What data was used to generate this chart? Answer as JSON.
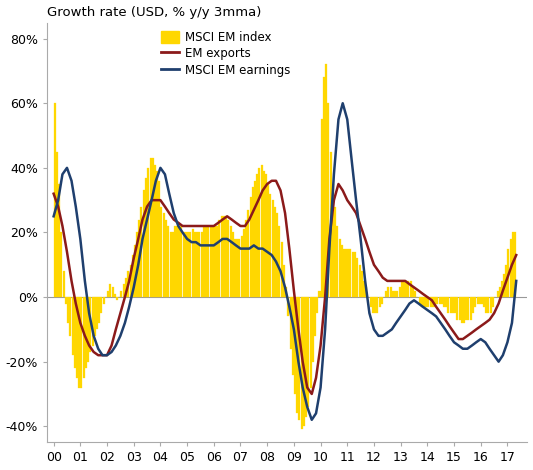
{
  "title": "Growth rate (USD, % y/y 3mma)",
  "ylim": [
    -45,
    85
  ],
  "yticks": [
    -40,
    -20,
    0,
    20,
    40,
    60,
    80
  ],
  "ytick_labels": [
    "-40%",
    "-20%",
    "0%",
    "20%",
    "40%",
    "60%",
    "80%"
  ],
  "bar_color": "#FFD700",
  "bar_edge_color": "#FFD700",
  "exports_color": "#8B1A1A",
  "earnings_color": "#1F3F6E",
  "legend_labels": [
    "MSCI EM index",
    "EM exports",
    "MSCI EM earnings"
  ],
  "xlabel_ticks": [
    "00",
    "01",
    "02",
    "03",
    "04",
    "05",
    "06",
    "07",
    "08",
    "09",
    "10",
    "11",
    "12",
    "13",
    "14",
    "15",
    "16",
    "17"
  ],
  "background_color": "#ffffff",
  "bar_data_x": [
    2000.04,
    2000.12,
    2000.21,
    2000.29,
    2000.38,
    2000.46,
    2000.54,
    2000.63,
    2000.71,
    2000.79,
    2000.88,
    2000.96,
    2001.04,
    2001.12,
    2001.21,
    2001.29,
    2001.38,
    2001.46,
    2001.54,
    2001.63,
    2001.71,
    2001.79,
    2001.88,
    2001.96,
    2002.04,
    2002.12,
    2002.21,
    2002.29,
    2002.38,
    2002.46,
    2002.54,
    2002.63,
    2002.71,
    2002.79,
    2002.88,
    2002.96,
    2003.04,
    2003.12,
    2003.21,
    2003.29,
    2003.38,
    2003.46,
    2003.54,
    2003.63,
    2003.71,
    2003.79,
    2003.88,
    2003.96,
    2004.04,
    2004.12,
    2004.21,
    2004.29,
    2004.38,
    2004.46,
    2004.54,
    2004.63,
    2004.71,
    2004.79,
    2004.88,
    2004.96,
    2005.04,
    2005.12,
    2005.21,
    2005.29,
    2005.38,
    2005.46,
    2005.54,
    2005.63,
    2005.71,
    2005.79,
    2005.88,
    2005.96,
    2006.04,
    2006.12,
    2006.21,
    2006.29,
    2006.38,
    2006.46,
    2006.54,
    2006.63,
    2006.71,
    2006.79,
    2006.88,
    2006.96,
    2007.04,
    2007.12,
    2007.21,
    2007.29,
    2007.38,
    2007.46,
    2007.54,
    2007.63,
    2007.71,
    2007.79,
    2007.88,
    2007.96,
    2008.04,
    2008.12,
    2008.21,
    2008.29,
    2008.38,
    2008.46,
    2008.54,
    2008.63,
    2008.71,
    2008.79,
    2008.88,
    2008.96,
    2009.04,
    2009.12,
    2009.21,
    2009.29,
    2009.38,
    2009.46,
    2009.54,
    2009.63,
    2009.71,
    2009.79,
    2009.88,
    2009.96,
    2010.04,
    2010.12,
    2010.21,
    2010.29,
    2010.38,
    2010.46,
    2010.54,
    2010.63,
    2010.71,
    2010.79,
    2010.88,
    2010.96,
    2011.04,
    2011.12,
    2011.21,
    2011.29,
    2011.38,
    2011.46,
    2011.54,
    2011.63,
    2011.71,
    2011.79,
    2011.88,
    2011.96,
    2012.04,
    2012.12,
    2012.21,
    2012.29,
    2012.38,
    2012.46,
    2012.54,
    2012.63,
    2012.71,
    2012.79,
    2012.88,
    2012.96,
    2013.04,
    2013.12,
    2013.21,
    2013.29,
    2013.38,
    2013.46,
    2013.54,
    2013.63,
    2013.71,
    2013.79,
    2013.88,
    2013.96,
    2014.04,
    2014.12,
    2014.21,
    2014.29,
    2014.38,
    2014.46,
    2014.54,
    2014.63,
    2014.71,
    2014.79,
    2014.88,
    2014.96,
    2015.04,
    2015.12,
    2015.21,
    2015.29,
    2015.38,
    2015.46,
    2015.54,
    2015.63,
    2015.71,
    2015.79,
    2015.88,
    2015.96,
    2016.04,
    2016.12,
    2016.21,
    2016.29,
    2016.38,
    2016.46,
    2016.54,
    2016.63,
    2016.71,
    2016.79,
    2016.88,
    2016.96,
    2017.04,
    2017.12,
    2017.21,
    2017.29
  ],
  "bar_data_y": [
    60,
    45,
    35,
    20,
    8,
    -2,
    -8,
    -12,
    -18,
    -22,
    -25,
    -28,
    -28,
    -25,
    -22,
    -20,
    -17,
    -15,
    -12,
    -10,
    -8,
    -5,
    -2,
    0,
    2,
    4,
    3,
    1,
    -1,
    0,
    2,
    4,
    6,
    8,
    10,
    13,
    16,
    20,
    24,
    28,
    33,
    37,
    40,
    43,
    43,
    41,
    39,
    36,
    28,
    26,
    24,
    22,
    20,
    20,
    22,
    22,
    23,
    22,
    20,
    20,
    20,
    20,
    21,
    20,
    20,
    20,
    20,
    22,
    22,
    22,
    22,
    22,
    22,
    22,
    24,
    25,
    25,
    25,
    24,
    22,
    20,
    18,
    18,
    18,
    19,
    21,
    24,
    27,
    31,
    34,
    36,
    38,
    40,
    41,
    39,
    38,
    35,
    32,
    30,
    28,
    26,
    22,
    17,
    10,
    3,
    -6,
    -16,
    -24,
    -30,
    -36,
    -38,
    -41,
    -40,
    -37,
    -34,
    -28,
    -20,
    -12,
    -5,
    2,
    55,
    68,
    72,
    60,
    45,
    35,
    28,
    22,
    18,
    16,
    15,
    15,
    15,
    15,
    14,
    14,
    12,
    10,
    8,
    5,
    3,
    0,
    -3,
    -5,
    -5,
    -5,
    -3,
    -2,
    0,
    2,
    3,
    3,
    2,
    2,
    2,
    3,
    5,
    5,
    5,
    5,
    5,
    3,
    2,
    0,
    -2,
    -3,
    -3,
    -3,
    -3,
    -3,
    -3,
    -3,
    -2,
    -2,
    -2,
    -3,
    -3,
    -5,
    -5,
    -5,
    -5,
    -7,
    -7,
    -8,
    -8,
    -7,
    -7,
    -7,
    -5,
    -3,
    -2,
    -2,
    -2,
    -3,
    -5,
    -5,
    -5,
    -3,
    0,
    2,
    3,
    5,
    7,
    10,
    15,
    18,
    20,
    20
  ],
  "exports_x": [
    2000.0,
    2000.17,
    2000.33,
    2000.5,
    2000.67,
    2000.83,
    2001.0,
    2001.17,
    2001.33,
    2001.5,
    2001.67,
    2001.83,
    2002.0,
    2002.17,
    2002.33,
    2002.5,
    2002.67,
    2002.83,
    2003.0,
    2003.17,
    2003.33,
    2003.5,
    2003.67,
    2003.83,
    2004.0,
    2004.17,
    2004.33,
    2004.5,
    2004.67,
    2004.83,
    2005.0,
    2005.17,
    2005.33,
    2005.5,
    2005.67,
    2005.83,
    2006.0,
    2006.17,
    2006.33,
    2006.5,
    2006.67,
    2006.83,
    2007.0,
    2007.17,
    2007.33,
    2007.5,
    2007.67,
    2007.83,
    2008.0,
    2008.17,
    2008.33,
    2008.5,
    2008.67,
    2008.83,
    2009.0,
    2009.17,
    2009.33,
    2009.5,
    2009.67,
    2009.83,
    2010.0,
    2010.17,
    2010.33,
    2010.5,
    2010.67,
    2010.83,
    2011.0,
    2011.17,
    2011.33,
    2011.5,
    2011.67,
    2011.83,
    2012.0,
    2012.17,
    2012.33,
    2012.5,
    2012.67,
    2012.83,
    2013.0,
    2013.17,
    2013.33,
    2013.5,
    2013.67,
    2013.83,
    2014.0,
    2014.17,
    2014.33,
    2014.5,
    2014.67,
    2014.83,
    2015.0,
    2015.17,
    2015.33,
    2015.5,
    2015.67,
    2015.83,
    2016.0,
    2016.17,
    2016.33,
    2016.5,
    2016.67,
    2016.83,
    2017.0,
    2017.17,
    2017.33
  ],
  "exports_y": [
    32,
    28,
    22,
    14,
    5,
    -2,
    -8,
    -12,
    -15,
    -17,
    -18,
    -18,
    -18,
    -15,
    -10,
    -5,
    0,
    5,
    12,
    18,
    24,
    28,
    30,
    30,
    30,
    28,
    26,
    24,
    23,
    22,
    22,
    22,
    22,
    22,
    22,
    22,
    22,
    23,
    24,
    25,
    24,
    23,
    22,
    22,
    24,
    27,
    30,
    33,
    35,
    36,
    36,
    33,
    26,
    15,
    2,
    -10,
    -20,
    -28,
    -30,
    -25,
    -15,
    0,
    18,
    30,
    35,
    33,
    30,
    28,
    26,
    22,
    18,
    14,
    10,
    8,
    6,
    5,
    5,
    5,
    5,
    5,
    4,
    3,
    2,
    1,
    0,
    -1,
    -3,
    -5,
    -7,
    -9,
    -11,
    -13,
    -13,
    -12,
    -11,
    -10,
    -9,
    -8,
    -7,
    -5,
    -2,
    2,
    6,
    10,
    13
  ],
  "earnings_x": [
    2000.0,
    2000.17,
    2000.33,
    2000.5,
    2000.67,
    2000.83,
    2001.0,
    2001.17,
    2001.33,
    2001.5,
    2001.67,
    2001.83,
    2002.0,
    2002.17,
    2002.33,
    2002.5,
    2002.67,
    2002.83,
    2003.0,
    2003.17,
    2003.33,
    2003.5,
    2003.67,
    2003.83,
    2004.0,
    2004.17,
    2004.33,
    2004.5,
    2004.67,
    2004.83,
    2005.0,
    2005.17,
    2005.33,
    2005.5,
    2005.67,
    2005.83,
    2006.0,
    2006.17,
    2006.33,
    2006.5,
    2006.67,
    2006.83,
    2007.0,
    2007.17,
    2007.33,
    2007.5,
    2007.67,
    2007.83,
    2008.0,
    2008.17,
    2008.33,
    2008.5,
    2008.67,
    2008.83,
    2009.0,
    2009.17,
    2009.33,
    2009.5,
    2009.67,
    2009.83,
    2010.0,
    2010.17,
    2010.33,
    2010.5,
    2010.67,
    2010.83,
    2011.0,
    2011.17,
    2011.33,
    2011.5,
    2011.67,
    2011.83,
    2012.0,
    2012.17,
    2012.33,
    2012.5,
    2012.67,
    2012.83,
    2013.0,
    2013.17,
    2013.33,
    2013.5,
    2013.67,
    2013.83,
    2014.0,
    2014.17,
    2014.33,
    2014.5,
    2014.67,
    2014.83,
    2015.0,
    2015.17,
    2015.33,
    2015.5,
    2015.67,
    2015.83,
    2016.0,
    2016.17,
    2016.33,
    2016.5,
    2016.67,
    2016.83,
    2017.0,
    2017.17,
    2017.33
  ],
  "earnings_y": [
    25,
    30,
    38,
    40,
    36,
    28,
    18,
    5,
    -5,
    -12,
    -16,
    -18,
    -18,
    -17,
    -15,
    -12,
    -8,
    -3,
    3,
    10,
    18,
    24,
    30,
    36,
    40,
    38,
    32,
    26,
    22,
    20,
    18,
    17,
    17,
    16,
    16,
    16,
    16,
    17,
    18,
    18,
    17,
    16,
    15,
    15,
    15,
    16,
    15,
    15,
    14,
    13,
    11,
    8,
    3,
    -3,
    -10,
    -20,
    -28,
    -34,
    -38,
    -36,
    -28,
    -10,
    15,
    38,
    55,
    60,
    55,
    42,
    30,
    18,
    5,
    -5,
    -10,
    -12,
    -12,
    -11,
    -10,
    -8,
    -6,
    -4,
    -2,
    -1,
    -2,
    -3,
    -4,
    -5,
    -6,
    -8,
    -10,
    -12,
    -14,
    -15,
    -16,
    -16,
    -15,
    -14,
    -13,
    -14,
    -16,
    -18,
    -20,
    -18,
    -14,
    -8,
    5
  ]
}
